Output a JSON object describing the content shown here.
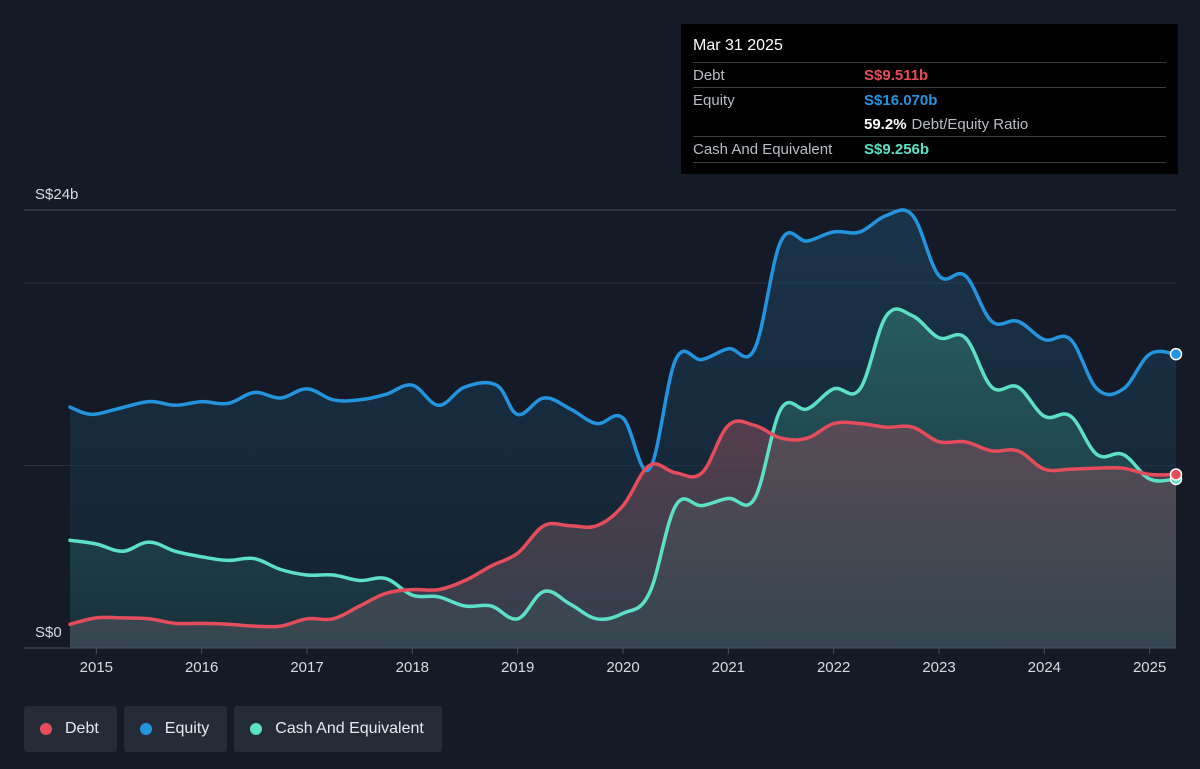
{
  "chart_data": {
    "type": "area",
    "currency_prefix": "S$",
    "x_start": 2014.75,
    "x_end": 2025.25,
    "ylim": [
      0,
      24
    ],
    "y_tick_labels": [
      {
        "value": 24,
        "label": "S$24b"
      },
      {
        "value": 0,
        "label": "S$0"
      }
    ],
    "x_tick_labels": [
      "2015",
      "2016",
      "2017",
      "2018",
      "2019",
      "2020",
      "2021",
      "2022",
      "2023",
      "2024",
      "2025"
    ],
    "x_tick_values": [
      2015,
      2016,
      2017,
      2018,
      2019,
      2020,
      2021,
      2022,
      2023,
      2024,
      2025
    ],
    "gridlines_y": [
      24,
      20,
      10
    ],
    "series": [
      {
        "name": "Equity",
        "color": "#2394df",
        "points": [
          [
            2014.75,
            13.2
          ],
          [
            2014.95,
            12.8
          ],
          [
            2015.2,
            13.1
          ],
          [
            2015.5,
            13.5
          ],
          [
            2015.75,
            13.3
          ],
          [
            2016.0,
            13.5
          ],
          [
            2016.25,
            13.4
          ],
          [
            2016.5,
            14.0
          ],
          [
            2016.75,
            13.7
          ],
          [
            2017.0,
            14.2
          ],
          [
            2017.25,
            13.6
          ],
          [
            2017.5,
            13.6
          ],
          [
            2017.75,
            13.9
          ],
          [
            2018.0,
            14.4
          ],
          [
            2018.25,
            13.3
          ],
          [
            2018.5,
            14.3
          ],
          [
            2018.8,
            14.4
          ],
          [
            2019.0,
            12.8
          ],
          [
            2019.25,
            13.7
          ],
          [
            2019.5,
            13.1
          ],
          [
            2019.75,
            12.3
          ],
          [
            2020.0,
            12.6
          ],
          [
            2020.25,
            9.8
          ],
          [
            2020.5,
            15.8
          ],
          [
            2020.75,
            15.8
          ],
          [
            2021.0,
            16.4
          ],
          [
            2021.25,
            16.4
          ],
          [
            2021.5,
            22.3
          ],
          [
            2021.75,
            22.3
          ],
          [
            2022.0,
            22.8
          ],
          [
            2022.25,
            22.8
          ],
          [
            2022.5,
            23.7
          ],
          [
            2022.75,
            23.7
          ],
          [
            2023.0,
            20.4
          ],
          [
            2023.25,
            20.4
          ],
          [
            2023.5,
            17.9
          ],
          [
            2023.75,
            17.9
          ],
          [
            2024.0,
            16.9
          ],
          [
            2024.25,
            16.9
          ],
          [
            2024.5,
            14.2
          ],
          [
            2024.75,
            14.2
          ],
          [
            2025.0,
            16.1
          ],
          [
            2025.25,
            16.1
          ]
        ]
      },
      {
        "name": "Cash And Equivalent",
        "color": "#5ce0c6",
        "points": [
          [
            2014.75,
            5.9
          ],
          [
            2015.0,
            5.7
          ],
          [
            2015.25,
            5.3
          ],
          [
            2015.5,
            5.8
          ],
          [
            2015.75,
            5.3
          ],
          [
            2016.0,
            5.0
          ],
          [
            2016.25,
            4.8
          ],
          [
            2016.5,
            4.9
          ],
          [
            2016.75,
            4.3
          ],
          [
            2017.0,
            4.0
          ],
          [
            2017.25,
            4.0
          ],
          [
            2017.5,
            3.7
          ],
          [
            2017.75,
            3.8
          ],
          [
            2018.0,
            2.9
          ],
          [
            2018.25,
            2.8
          ],
          [
            2018.5,
            2.3
          ],
          [
            2018.75,
            2.3
          ],
          [
            2019.0,
            1.6
          ],
          [
            2019.25,
            3.1
          ],
          [
            2019.5,
            2.4
          ],
          [
            2019.75,
            1.6
          ],
          [
            2020.0,
            1.9
          ],
          [
            2020.25,
            3.0
          ],
          [
            2020.5,
            7.8
          ],
          [
            2020.75,
            7.8
          ],
          [
            2021.0,
            8.2
          ],
          [
            2021.25,
            8.2
          ],
          [
            2021.5,
            13.1
          ],
          [
            2021.75,
            13.1
          ],
          [
            2022.0,
            14.2
          ],
          [
            2022.25,
            14.2
          ],
          [
            2022.5,
            18.2
          ],
          [
            2022.75,
            18.2
          ],
          [
            2023.0,
            17.0
          ],
          [
            2023.25,
            17.0
          ],
          [
            2023.5,
            14.3
          ],
          [
            2023.75,
            14.3
          ],
          [
            2024.0,
            12.7
          ],
          [
            2024.25,
            12.7
          ],
          [
            2024.5,
            10.6
          ],
          [
            2024.75,
            10.6
          ],
          [
            2025.0,
            9.26
          ],
          [
            2025.25,
            9.26
          ]
        ]
      },
      {
        "name": "Debt",
        "color": "#e64d5a",
        "points": [
          [
            2014.75,
            1.3
          ],
          [
            2015.0,
            1.65
          ],
          [
            2015.25,
            1.65
          ],
          [
            2015.5,
            1.6
          ],
          [
            2015.75,
            1.35
          ],
          [
            2016.0,
            1.35
          ],
          [
            2016.25,
            1.3
          ],
          [
            2016.5,
            1.2
          ],
          [
            2016.75,
            1.2
          ],
          [
            2017.0,
            1.6
          ],
          [
            2017.25,
            1.6
          ],
          [
            2017.5,
            2.3
          ],
          [
            2017.75,
            3.0
          ],
          [
            2018.0,
            3.2
          ],
          [
            2018.25,
            3.2
          ],
          [
            2018.5,
            3.7
          ],
          [
            2018.75,
            4.5
          ],
          [
            2019.0,
            5.2
          ],
          [
            2019.25,
            6.7
          ],
          [
            2019.5,
            6.7
          ],
          [
            2019.75,
            6.7
          ],
          [
            2020.0,
            7.8
          ],
          [
            2020.25,
            10.0
          ],
          [
            2020.5,
            9.6
          ],
          [
            2020.75,
            9.6
          ],
          [
            2021.0,
            12.2
          ],
          [
            2021.25,
            12.2
          ],
          [
            2021.5,
            11.5
          ],
          [
            2021.75,
            11.5
          ],
          [
            2022.0,
            12.3
          ],
          [
            2022.25,
            12.3
          ],
          [
            2022.5,
            12.1
          ],
          [
            2022.75,
            12.1
          ],
          [
            2023.0,
            11.3
          ],
          [
            2023.25,
            11.3
          ],
          [
            2023.5,
            10.8
          ],
          [
            2023.75,
            10.8
          ],
          [
            2024.0,
            9.8
          ],
          [
            2024.25,
            9.8
          ],
          [
            2024.5,
            9.85
          ],
          [
            2024.75,
            9.85
          ],
          [
            2025.0,
            9.51
          ],
          [
            2025.25,
            9.51
          ]
        ]
      }
    ]
  },
  "tooltip": {
    "date": "Mar 31 2025",
    "debt_label": "Debt",
    "debt_value": "S$9.511b",
    "equity_label": "Equity",
    "equity_value": "S$16.070b",
    "ratio_value": "59.2%",
    "ratio_label": "Debt/Equity Ratio",
    "cash_label": "Cash And Equivalent",
    "cash_value": "S$9.256b"
  },
  "legend": {
    "debt": "Debt",
    "equity": "Equity",
    "cash": "Cash And Equivalent"
  }
}
